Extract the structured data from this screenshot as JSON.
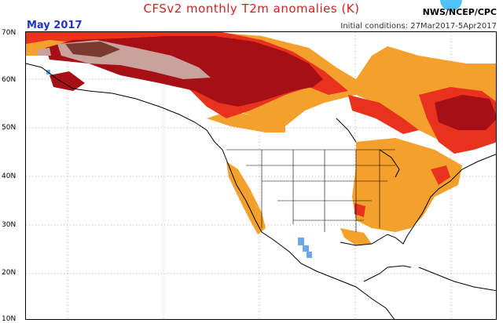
{
  "header": {
    "title": "CFSv2 monthly T2m anomalies (K)",
    "month": "May 2017",
    "agency": "NWS/NCEP/CPC",
    "initial_conditions": "Initial conditions: 27Mar2017-5Apr2017"
  },
  "map": {
    "lat_labels": [
      "70N",
      "60N",
      "50N",
      "40N",
      "30N",
      "20N",
      "10N"
    ],
    "colors": {
      "dark_brown": "#7a3a2e",
      "pink_tan": "#c9a39b",
      "dark_red": "#a50f15",
      "red": "#e8321e",
      "orange": "#f4a02c",
      "light_blue": "#6aa8e8",
      "logo_blue": "#4fc3f7"
    }
  }
}
